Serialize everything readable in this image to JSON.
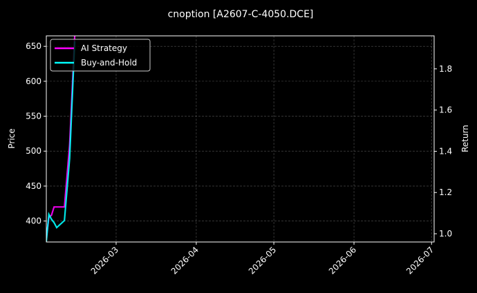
{
  "chart_data": {
    "type": "line",
    "title": "cnoption [A2607-C-4050.DCE]",
    "ylabel": "Price",
    "y2label": "Return",
    "ylim": [
      370,
      665
    ],
    "y2lim": [
      0.96,
      1.96
    ],
    "xlim": [
      "2026-02-02",
      "2026-07-02"
    ],
    "yticks": [
      400,
      450,
      500,
      550,
      600,
      650
    ],
    "y2ticks": [
      "1.0",
      "1.2",
      "1.4",
      "1.6",
      "1.8"
    ],
    "xticks": [
      "2026-03",
      "2026-04",
      "2026-05",
      "2026-06",
      "2026-07"
    ],
    "grid": true,
    "legend_placement": "top-left",
    "series": [
      {
        "name": "AI Strategy",
        "axis": "right",
        "color": "#ff00ff",
        "x": [
          "2026-02-02",
          "2026-02-03",
          "2026-02-04",
          "2026-02-05",
          "2026-02-06",
          "2026-02-09",
          "2026-02-11",
          "2026-02-13"
        ],
        "values": [
          0.98,
          1.08,
          1.09,
          1.13,
          1.13,
          1.13,
          1.43,
          1.96
        ]
      },
      {
        "name": "Buy-and-Hold",
        "axis": "right",
        "color": "#00ffff",
        "x": [
          "2026-02-02",
          "2026-02-03",
          "2026-02-04",
          "2026-02-05",
          "2026-02-06",
          "2026-02-09",
          "2026-02-11",
          "2026-02-13"
        ],
        "values": [
          0.963,
          1.094,
          1.07,
          1.054,
          1.03,
          1.064,
          1.365,
          1.934
        ]
      }
    ]
  }
}
